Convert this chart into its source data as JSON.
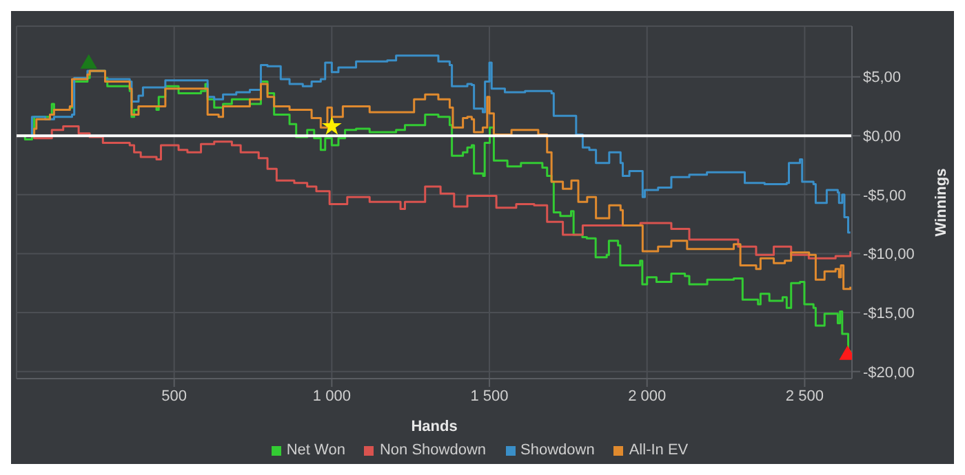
{
  "chart_data": {
    "type": "step",
    "xlabel": "Hands",
    "ylabel": "Winnings",
    "xlim": [
      0,
      2650
    ],
    "ylim": [
      -20.6,
      9.3
    ],
    "xticks": [
      500,
      {
        "value": 1000,
        "label": "1 000"
      },
      {
        "value": 1500,
        "label": "1 500"
      },
      {
        "value": 2000,
        "label": "2 000"
      },
      {
        "value": 2500,
        "label": "2 500"
      }
    ],
    "yticks": [
      {
        "value": -20,
        "label": "-$20,00"
      },
      {
        "value": -15,
        "label": "-$15,00"
      },
      {
        "value": -10,
        "label": "-$10,00"
      },
      {
        "value": -5,
        "label": "-$5,00"
      },
      {
        "value": 0,
        "label": "$0,00"
      },
      {
        "value": 5,
        "label": "$5,00"
      }
    ],
    "grid": true,
    "legend": "bottom",
    "marker": "none",
    "ref_lines": [
      {
        "axis": "y",
        "value": 0,
        "color": "#ffffff"
      }
    ],
    "series": [
      {
        "name": "Net Won",
        "color": "#33cc33",
        "x": [
          0,
          27,
          49,
          56,
          106,
          112,
          119,
          169,
          176,
          225,
          232,
          281,
          288,
          359,
          365,
          373,
          387,
          444,
          451,
          472,
          514,
          585,
          599,
          606,
          627,
          655,
          683,
          740,
          775,
          796,
          817,
          866,
          887,
          922,
          944,
          965,
          979,
          1000,
          1021,
          1042,
          1077,
          1120,
          1204,
          1232,
          1296,
          1338,
          1374,
          1381,
          1416,
          1430,
          1444,
          1451,
          1480,
          1485,
          1501,
          1514,
          1557,
          1600,
          1654,
          1668,
          1683,
          1697,
          1704,
          1725,
          1759,
          1767,
          1795,
          1809,
          1837,
          1872,
          1879,
          1908,
          1915,
          1978,
          1985,
          2000,
          2030,
          2077,
          2120,
          2134,
          2191,
          2275,
          2303,
          2352,
          2360,
          2388,
          2430,
          2443,
          2457,
          2485,
          2499,
          2528,
          2535,
          2556,
          2563,
          2598,
          2605,
          2612,
          2619,
          2626,
          2638,
          2645
        ],
        "values": [
          0,
          -0.3,
          0.2,
          1.6,
          1.8,
          2.7,
          2.2,
          2.4,
          4.6,
          4.9,
          5.5,
          4.9,
          4.2,
          3.8,
          1.6,
          2.2,
          2.5,
          2.2,
          3.3,
          4.2,
          3.6,
          3.8,
          4.4,
          3.1,
          2.4,
          2.7,
          3.1,
          2.7,
          4.6,
          3.6,
          1.8,
          1.0,
          -0.1,
          0.5,
          -0.2,
          -1.2,
          -0.2,
          -0.8,
          -0.2,
          0.5,
          0.6,
          0.3,
          0.5,
          0.9,
          1.8,
          1.6,
          0.9,
          -1.7,
          -1.4,
          -1.0,
          -0.8,
          -3.2,
          -3.4,
          -0.6,
          0.7,
          -2.1,
          -2.6,
          -2.3,
          -2.3,
          -2.7,
          -3.4,
          -3.9,
          -6.5,
          -6.8,
          -6.4,
          -8.4,
          -8.6,
          -8.7,
          -10.3,
          -10.1,
          -8.9,
          -9.3,
          -11.0,
          -10.6,
          -12.6,
          -12.0,
          -12.4,
          -11.7,
          -11.9,
          -12.6,
          -12.2,
          -12.1,
          -13.9,
          -14.3,
          -13.4,
          -14.0,
          -13.7,
          -14.6,
          -12.5,
          -12.4,
          -14.3,
          -14.6,
          -16.1,
          -16.1,
          -15.1,
          -15.1,
          -15.9,
          -14.9,
          -16.8,
          -16.8,
          -18.3,
          -18.5
        ]
      },
      {
        "name": "Non Showdown",
        "color": "#d9534f",
        "x": [
          0,
          56,
          112,
          148,
          197,
          232,
          274,
          359,
          373,
          394,
          444,
          458,
          514,
          542,
          585,
          627,
          683,
          711,
          768,
          796,
          825,
          881,
          922,
          951,
          993,
          1035,
          1049,
          1120,
          1218,
          1232,
          1296,
          1345,
          1388,
          1430,
          1479,
          1522,
          1585,
          1642,
          1683,
          1733,
          1796,
          1881,
          1979,
          2077,
          2134,
          2232,
          2289,
          2346,
          2402,
          2457,
          2513,
          2598,
          2645
        ],
        "values": [
          0,
          -0.2,
          0.5,
          0.8,
          0.2,
          -0.1,
          -0.6,
          -0.8,
          -1.4,
          -1.8,
          -2.0,
          -0.8,
          -1.2,
          -1.4,
          -0.7,
          -0.5,
          -0.8,
          -1.4,
          -1.9,
          -2.8,
          -3.8,
          -4.0,
          -4.3,
          -4.7,
          -5.8,
          -5.8,
          -5.2,
          -5.6,
          -6.2,
          -5.6,
          -4.3,
          -4.9,
          -6.0,
          -5.1,
          -5.1,
          -6.1,
          -5.8,
          -5.9,
          -7.3,
          -8.4,
          -7.6,
          -7.6,
          -7.4,
          -7.9,
          -8.8,
          -8.8,
          -9.4,
          -10.1,
          -9.4,
          -10.1,
          -10.4,
          -10.2,
          -9.8
        ]
      },
      {
        "name": "Showdown",
        "color": "#3a8fc8",
        "x": [
          0,
          49,
          91,
          119,
          176,
          183,
          225,
          281,
          359,
          365,
          387,
          401,
          472,
          599,
          606,
          627,
          655,
          697,
          740,
          775,
          796,
          838,
          866,
          908,
          936,
          965,
          979,
          1000,
          1021,
          1077,
          1176,
          1204,
          1338,
          1374,
          1381,
          1430,
          1444,
          1451,
          1479,
          1486,
          1500,
          1507,
          1535,
          1549,
          1613,
          1697,
          1704,
          1760,
          1775,
          1796,
          1817,
          1838,
          1880,
          1916,
          1923,
          1944,
          1986,
          1993,
          2035,
          2077,
          2134,
          2190,
          2289,
          2310,
          2373,
          2443,
          2450,
          2485,
          2492,
          2528,
          2535,
          2563,
          2570,
          2605,
          2609,
          2619,
          2626,
          2638,
          2645
        ],
        "values": [
          0,
          1.6,
          1.4,
          1.6,
          1.8,
          4.9,
          5.5,
          4.8,
          4.6,
          2.9,
          3.4,
          4.1,
          4.7,
          4.7,
          3.3,
          3.1,
          3.5,
          3.7,
          3.9,
          6.0,
          5.9,
          4.8,
          4.4,
          4.2,
          4.6,
          4.8,
          6.2,
          5.4,
          5.8,
          6.3,
          6.4,
          6.8,
          6.3,
          6.0,
          4.2,
          4.4,
          4.3,
          2.3,
          2.0,
          4.6,
          6.2,
          4.0,
          4.0,
          3.7,
          3.8,
          3.6,
          1.7,
          1.7,
          0.1,
          -1.0,
          -1.2,
          -2.3,
          -1.4,
          -2.3,
          -3.4,
          -3.0,
          -5.2,
          -4.6,
          -4.4,
          -3.5,
          -3.3,
          -3.1,
          -3.1,
          -4.0,
          -4.1,
          -4.0,
          -2.3,
          -2.0,
          -3.9,
          -4.1,
          -5.7,
          -5.7,
          -4.6,
          -4.8,
          -5.7,
          -5.0,
          -6.9,
          -8.2,
          -8.2
        ]
      },
      {
        "name": "All-In EV",
        "color": "#e08a2e",
        "x": [
          0,
          56,
          63,
          106,
          119,
          169,
          176,
          225,
          232,
          281,
          359,
          365,
          387,
          444,
          472,
          585,
          606,
          641,
          655,
          740,
          775,
          796,
          817,
          866,
          936,
          965,
          986,
          1000,
          1035,
          1120,
          1204,
          1261,
          1296,
          1338,
          1374,
          1384,
          1416,
          1430,
          1444,
          1451,
          1479,
          1493,
          1500,
          1514,
          1570,
          1655,
          1683,
          1697,
          1733,
          1760,
          1782,
          1810,
          1838,
          1873,
          1880,
          1916,
          1923,
          1979,
          1986,
          2035,
          2077,
          2127,
          2275,
          2296,
          2346,
          2360,
          2402,
          2437,
          2457,
          2514,
          2535,
          2563,
          2598,
          2609,
          2615,
          2623,
          2645
        ],
        "values": [
          0,
          0.6,
          1.4,
          1.8,
          2.2,
          2.5,
          4.8,
          5.2,
          5.5,
          4.6,
          4.0,
          1.8,
          2.5,
          2.5,
          4.0,
          4.0,
          1.8,
          1.6,
          2.5,
          3.1,
          4.4,
          3.3,
          2.5,
          2.2,
          1.5,
          0.7,
          2.4,
          1.6,
          2.5,
          2.0,
          2.0,
          3.1,
          3.5,
          3.1,
          2.4,
          0.7,
          1.5,
          1.6,
          1.4,
          0.3,
          0.7,
          3.3,
          1.9,
          0.1,
          0.5,
          0.1,
          -1.4,
          -3.9,
          -4.5,
          -3.8,
          -5.6,
          -5.2,
          -7.0,
          -7.0,
          -5.9,
          -6.3,
          -7.6,
          -7.6,
          -9.8,
          -9.4,
          -8.9,
          -9.6,
          -9.2,
          -11.0,
          -11.3,
          -10.4,
          -10.8,
          -10.6,
          -9.9,
          -10.1,
          -12.2,
          -11.5,
          -11.3,
          -12.0,
          -11.0,
          -13.0,
          -12.8
        ]
      },
      {
        "type": "scatter",
        "marker": "triangle",
        "color": "#1a7a1a",
        "x": [
          229
        ],
        "values": [
          6.1
        ]
      },
      {
        "type": "scatter",
        "marker": "star",
        "color": "#ffee00",
        "x": [
          1000
        ],
        "values": [
          0.8
        ]
      },
      {
        "type": "scatter",
        "marker": "triangle",
        "color": "#ff1a1a",
        "x": [
          2636
        ],
        "values": [
          -18.6
        ]
      }
    ]
  }
}
